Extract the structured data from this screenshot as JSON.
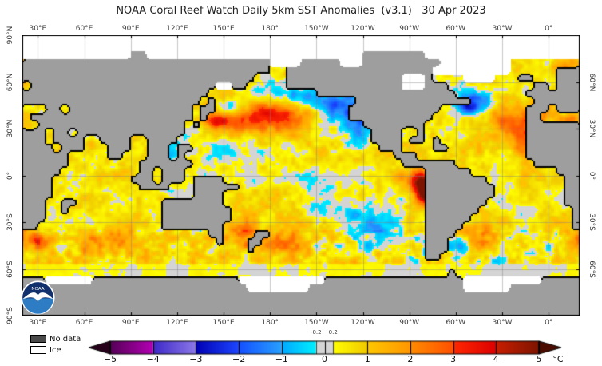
{
  "title": {
    "text": "NOAA Coral Reef Watch Daily 5km SST Anomalies  (v3.1)   30 Apr 2023",
    "product": "NOAA Coral Reef Watch Daily 5km SST Anomalies",
    "version": "v3.1",
    "date": "30 Apr 2023"
  },
  "axes": {
    "lon_labels": [
      {
        "deg": 30,
        "text": "30°E"
      },
      {
        "deg": 60,
        "text": "60°E"
      },
      {
        "deg": 90,
        "text": "90°E"
      },
      {
        "deg": 120,
        "text": "120°E"
      },
      {
        "deg": 150,
        "text": "150°E"
      },
      {
        "deg": 180,
        "text": "180°"
      },
      {
        "deg": 210,
        "text": "150°W"
      },
      {
        "deg": 240,
        "text": "120°W"
      },
      {
        "deg": 270,
        "text": "90°W"
      },
      {
        "deg": 300,
        "text": "60°W"
      },
      {
        "deg": 330,
        "text": "30°W"
      },
      {
        "deg": 360,
        "text": "0°"
      }
    ],
    "lat_labels_left": [
      {
        "deg": 90,
        "text": "90°N"
      },
      {
        "deg": 60,
        "text": "60°N"
      },
      {
        "deg": 30,
        "text": "30°N"
      },
      {
        "deg": 0,
        "text": "0°"
      },
      {
        "deg": -30,
        "text": "30°S"
      },
      {
        "deg": -60,
        "text": "60°S"
      },
      {
        "deg": -90,
        "text": "90°S"
      }
    ],
    "lat_labels_right": [
      {
        "deg": 60,
        "text": "60°N"
      },
      {
        "deg": 30,
        "text": "30°N"
      },
      {
        "deg": 0,
        "text": "0°"
      },
      {
        "deg": -30,
        "text": "30°S"
      },
      {
        "deg": -60,
        "text": "60°S"
      }
    ],
    "grid_lon_deg": [
      30,
      60,
      90,
      120,
      150,
      180,
      210,
      240,
      270,
      300,
      330,
      360
    ],
    "grid_lat_deg": [
      60,
      30,
      0,
      -30,
      -60
    ]
  },
  "map": {
    "projection": "equirectangular-pacific-centered",
    "lon_origin_deg_east": 20,
    "colors": {
      "land": "#9e9e9e",
      "ice": "#ffffff",
      "coastline": "#000000",
      "gridline": "rgba(130,130,130,0.45)",
      "frame": "#000000"
    },
    "land_grid": {
      "cols": 72,
      "rows": 36,
      "cell_deg": 5,
      "legend": {
        "L": "land",
        "I": "ice",
        ".": "ocean"
      },
      "rows_rle": [
        "72I",
        "72I",
        "14I 2L 28I 8L 20I",
        "32L 4I 5L 3I 10L 9I 9.",
        "32L 2. 19L 10I 6. 3L",
        "30L 4. 15L 3I 1L 4. 4I 3. 2L 3. 3L",
        "1. 24L 2I 2L 5. 15L 3I 3L 11. 2L 1. 3L",
        "24L 14. 18L 9. 7L",
        "23L 1. 1L 18. 15L 8. 6L",
        "3. 2L 1. 16L 1. 2L 17. 12L 11. 3L 1. 3L",
        "1. 21L 1. 1L 18. 11L 12. 2L 5.",
        "2. 19L 1. 1L 21. 8L 13. 7L",
        "3L 1. 2L 1. 14L 24. 4L 2. 1L 13. 7L",
        "3L 1. 4L 2. 4L 2. 4L 25. 4L 1. 2L 1. 1L 11. 7L",
        "4L 1. 3L 3. 3L 2. 3L 1. 2L 24. 3L 4. 2L 10. 7L",
        "6L 5. 2L 3. 3L 1. 1L 27. 3L 14. 7L",
        "6L 9. 7L 27. 7L 10. 6L",
        "5L 10. 2L 1. 3L 31. 6L 11. 3L",
        "4L 10. 3L 1. 3L 1. 4L 26. 8L 10. 2L",
        "4L 11. 4L 3. 6L 24. 9L 9. 2L",
        "4L 18. 4L 26. 9L 9. 2L",
        "3L 2. 2L 11. 8L 26. 8L 10. 2L",
        "3L 2. 1L 12. 9L 25. 7L 12. 1L",
        "3L 15. 9L 25. 6L 13. 1L",
        "2L 16. 8L 26. 5L 14. 1L",
        "24. 2L 4. 2L 20. 4L 16.",
        "25. 1L 3. 2L 21. 3L 17.",
        "29. 1L 22. 3L 17.",
        "52. 2L 18.",
        "72.",
        "55. 1L 16.",
        "3L 6I 19L 11I 18L 10I 5L",
        "29L 8I 20L 6I 9L",
        "72L",
        "72L",
        "72L"
      ]
    },
    "anomaly_field": {
      "base_warm_bias_c": 0.55,
      "noise_octaves": [
        [
          15,
          0.5
        ],
        [
          5,
          0.45
        ],
        [
          2.5,
          0.3
        ]
      ],
      "southern_eddy_boost": 1.6,
      "tropical_damp": 0.85,
      "polar_neutral_damp": 0.35,
      "blobs": [
        {
          "name": "north-pacific-warm-blob",
          "lon": 185,
          "lat": 38,
          "sx": 20,
          "sy": 7,
          "amp": 2.6
        },
        {
          "name": "nw-pacific-warm",
          "lon": 163,
          "lat": 34,
          "sx": 12,
          "sy": 6,
          "amp": 1.4
        },
        {
          "name": "oyashio-cold",
          "lon": 152,
          "lat": 44,
          "sx": 7,
          "sy": 4,
          "amp": -1.7
        },
        {
          "name": "subarctic-cold-band",
          "lon": 196,
          "lat": 51,
          "sx": 18,
          "sy": 5,
          "amp": -1.5
        },
        {
          "name": "ne-pacific-coastal-cold",
          "lon": 223,
          "lat": 43,
          "sx": 13,
          "sy": 8,
          "amp": -2.3
        },
        {
          "name": "baja-california-cold",
          "lon": 237,
          "lat": 30,
          "sx": 8,
          "sy": 9,
          "amp": -1.8
        },
        {
          "name": "nw-tropical-pacific-cold",
          "lon": 155,
          "lat": 15,
          "sx": 16,
          "sy": 7,
          "amp": -1.0
        },
        {
          "name": "south-china-sea-cold",
          "lon": 113,
          "lat": 13,
          "sx": 5,
          "sy": 5,
          "amp": -1.1
        },
        {
          "name": "central-equatorial-neutral",
          "lon": 196,
          "lat": -3,
          "sx": 25,
          "sy": 5,
          "amp": -0.85
        },
        {
          "name": "peru-coastal-el-nino",
          "lon": 278,
          "lat": -6,
          "sx": 5,
          "sy": 6,
          "amp": 4.6
        },
        {
          "name": "peru-coastal-el-nino-south",
          "lon": 282,
          "lat": -13,
          "sx": 4,
          "sy": 5,
          "amp": 3.2
        },
        {
          "name": "galapagos-warm",
          "lon": 265,
          "lat": -2,
          "sx": 10,
          "sy": 4,
          "amp": 1.2
        },
        {
          "name": "se-pacific-cold",
          "lon": 230,
          "lat": -27,
          "sx": 13,
          "sy": 7,
          "amp": -1.3
        },
        {
          "name": "chile-offshore-cold",
          "lon": 256,
          "lat": -34,
          "sx": 10,
          "sy": 6,
          "amp": -1.0
        },
        {
          "name": "north-atlantic-cold-pool",
          "lon": 313,
          "lat": 47,
          "sx": 9,
          "sy": 6,
          "amp": -2.6
        },
        {
          "name": "newfoundland-cold-core",
          "lon": 308,
          "lat": 44,
          "sx": 4,
          "sy": 2.5,
          "amp": -2.0
        },
        {
          "name": "subtropical-atlantic-warm",
          "lon": 335,
          "lat": 35,
          "sx": 11,
          "sy": 7,
          "amp": 1.6
        },
        {
          "name": "nw-africa-coastal-warm",
          "lon": 346,
          "lat": 23,
          "sx": 7,
          "sy": 9,
          "amp": 2.0
        },
        {
          "name": "iberia-warm",
          "lon": 350,
          "lat": 42,
          "sx": 6,
          "sy": 5,
          "amp": 1.4
        },
        {
          "name": "barents-sea-warm",
          "lon": 42,
          "lat": 71,
          "sx": 13,
          "sy": 3.5,
          "amp": 2.4
        },
        {
          "name": "norwegian-sea-warm",
          "lon": 370,
          "lat": 68,
          "sx": 8,
          "sy": 4,
          "amp": 1.6
        },
        {
          "name": "gulf-of-mexico-neutral",
          "lon": 270,
          "lat": 25,
          "sx": 6,
          "sy": 4,
          "amp": -0.9
        },
        {
          "name": "tasman-sea-warm",
          "lon": 158,
          "lat": -37,
          "sx": 8,
          "sy": 6,
          "amp": 1.9
        },
        {
          "name": "new-zealand-east-warm",
          "lon": 185,
          "lat": -43,
          "sx": 12,
          "sy": 6,
          "amp": 1.7
        },
        {
          "name": "south-indian-warm",
          "lon": 80,
          "lat": -43,
          "sx": 15,
          "sy": 6,
          "amp": 1.4
        },
        {
          "name": "agulhas-warm",
          "lon": 30,
          "lat": -41,
          "sx": 12,
          "sy": 5,
          "amp": 1.5
        },
        {
          "name": "brazil-current-warm",
          "lon": 315,
          "lat": -37,
          "sx": 10,
          "sy": 6,
          "amp": 1.7
        },
        {
          "name": "argentina-shelf-cold",
          "lon": 302,
          "lat": -45,
          "sx": 6,
          "sy": 4,
          "amp": -1.2
        },
        {
          "name": "indonesia-neutral",
          "lon": 120,
          "lat": -5,
          "sx": 10,
          "sy": 5,
          "amp": -0.5
        },
        {
          "name": "kuroshio-warm",
          "lon": 145,
          "lat": 35,
          "sx": 6,
          "sy": 3,
          "amp": 2.0
        },
        {
          "name": "japan-sea-warm",
          "lon": 140,
          "lat": 43,
          "sx": 4,
          "sy": 3,
          "amp": 1.6
        },
        {
          "name": "mediterranean-warm",
          "lon": 375,
          "lat": 36,
          "sx": 8,
          "sy": 3,
          "amp": 1.2
        }
      ]
    }
  },
  "legend": {
    "items": [
      {
        "label": "No data",
        "color": "#4a4a4a"
      },
      {
        "label": "Ice",
        "color": "#ffffff"
      }
    ]
  },
  "colorbar": {
    "range": [
      -5,
      5
    ],
    "unit": "°C",
    "ticks": [
      {
        "v": -5,
        "text": "−5"
      },
      {
        "v": -4,
        "text": "−4"
      },
      {
        "v": -3,
        "text": "−3"
      },
      {
        "v": -2,
        "text": "−2"
      },
      {
        "v": -1,
        "text": "−1"
      },
      {
        "v": 0,
        "text": "0"
      },
      {
        "v": 1,
        "text": "1"
      },
      {
        "v": 2,
        "text": "2"
      },
      {
        "v": 3,
        "text": "3"
      },
      {
        "v": 4,
        "text": "4"
      },
      {
        "v": 5,
        "text": "5"
      }
    ],
    "inner_labels": [
      {
        "v": -0.2,
        "text": "-0.2"
      },
      {
        "v": 0.2,
        "text": "0.2"
      }
    ],
    "segments": [
      {
        "from": -5,
        "to": -4,
        "c0": "#550057",
        "c1": "#b400b4"
      },
      {
        "from": -4,
        "to": -3,
        "c0": "#3c28c8",
        "c1": "#8c78e8"
      },
      {
        "from": -3,
        "to": -2,
        "c0": "#0000b4",
        "c1": "#1e46ff"
      },
      {
        "from": -2,
        "to": -1,
        "c0": "#1450ff",
        "c1": "#28a0ff"
      },
      {
        "from": -1,
        "to": -0.2,
        "c0": "#00a8ff",
        "c1": "#00f0ff"
      },
      {
        "from": -0.2,
        "to": 0.2,
        "c0": "#d4d4d4",
        "c1": "#d4d4d4"
      },
      {
        "from": 0.2,
        "to": 1,
        "c0": "#ffff00",
        "c1": "#f0c800"
      },
      {
        "from": 1,
        "to": 2,
        "c0": "#ffc800",
        "c1": "#ff9600"
      },
      {
        "from": 2,
        "to": 3,
        "c0": "#ff8c00",
        "c1": "#ff5000"
      },
      {
        "from": 3,
        "to": 4,
        "c0": "#ff2800",
        "c1": "#dc0000"
      },
      {
        "from": 4,
        "to": 5,
        "c0": "#c81e00",
        "c1": "#7d1400"
      }
    ],
    "under_arrow_color": "#26001a",
    "over_arrow_color": "#4a0c00"
  },
  "logo": {
    "text": "NOAA",
    "navy": "#12306b",
    "light_blue": "#2e7cc3"
  }
}
